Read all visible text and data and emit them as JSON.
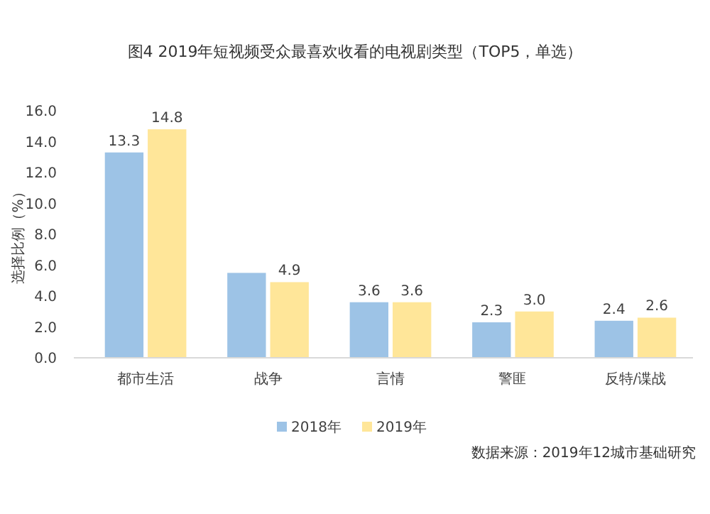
{
  "chart_data": {
    "type": "bar",
    "title": "图4  2019年短视频受众最喜欢收看的电视剧类型（TOP5，单选）",
    "ylabel": "选择比例（%）",
    "categories": [
      "都市生活",
      "战争",
      "言情",
      "警匪",
      "反特/谍战"
    ],
    "series": [
      {
        "name": "2018年",
        "color": "#9dc3e6",
        "values": [
          13.3,
          5.5,
          3.6,
          2.3,
          2.4
        ],
        "value_labels": [
          "13.3",
          null,
          "3.6",
          "2.3",
          "2.4"
        ]
      },
      {
        "name": "2019年",
        "color": "#ffe699",
        "values": [
          14.8,
          4.9,
          3.6,
          3.0,
          2.6
        ],
        "value_labels": [
          "14.8",
          "4.9",
          "3.6",
          "3.0",
          "2.6"
        ]
      }
    ],
    "ylim": [
      0,
      16
    ],
    "yticks": [
      {
        "value": 0,
        "label": "0.0"
      },
      {
        "value": 2,
        "label": "2.0"
      },
      {
        "value": 4,
        "label": "4.0"
      },
      {
        "value": 6,
        "label": "6.0"
      },
      {
        "value": 8,
        "label": "8.0"
      },
      {
        "value": 10,
        "label": "10.0"
      },
      {
        "value": 12,
        "label": "12.0"
      },
      {
        "value": 14,
        "label": "14.0"
      },
      {
        "value": 16,
        "label": "16.0"
      }
    ],
    "grid": false,
    "legend": "bottom",
    "annotations": [
      "数据来源：2019年12城市基础研究"
    ]
  }
}
